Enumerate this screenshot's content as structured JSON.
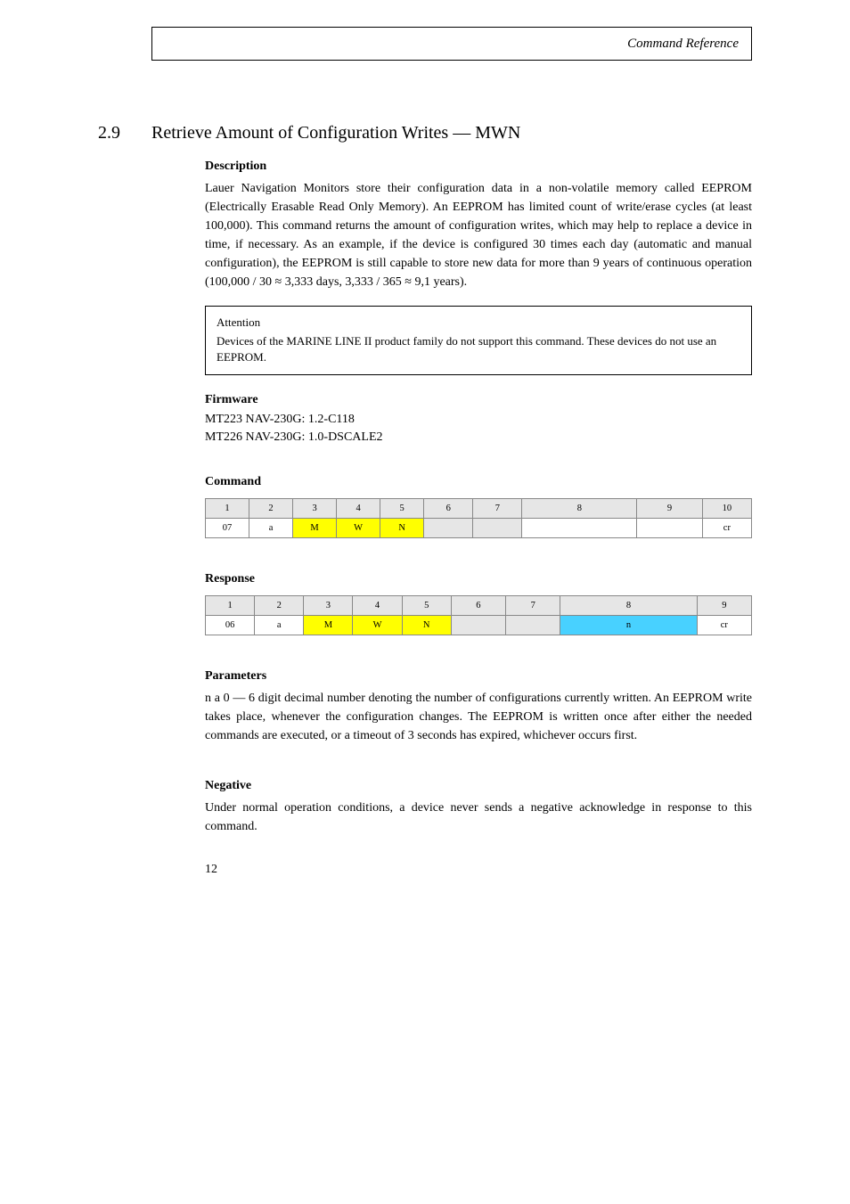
{
  "header": {
    "title": "Command Reference"
  },
  "section_2_9": {
    "number": "2.9",
    "title": "Retrieve Amount of Configuration Writes — MWN",
    "description_label": "Description",
    "description": "Lauer Navigation Monitors store their configuration data in a non-volatile memory called EEPROM (Electrically Erasable Read Only Memory). An EEPROM has limited count of write/erase cycles (at least 100,000). This command returns the amount of configuration writes, which may help to replace a device in time, if necessary. As an example, if the device is configured 30 times each day (automatic and manual configuration), the EEPROM is still capable to store new data for more than 9 years of continuous operation (100,000 / 30 ≈ 3,333 days, 3,333 / 365 ≈ 9,1 years).",
    "attention_label": "Attention",
    "attention_text": "Devices of the MARINE LINE II product family do not support this command. These devices do not use an EEPROM.",
    "fw_label": "Firmware",
    "fw_line1": "MT223 NAV-230G: 1.2-C118",
    "fw_line2": "MT226 NAV-230G: 1.0-DSCALE2",
    "cmd_label": "Command",
    "resp_label": "Response",
    "params_label": "Parameters",
    "params_text": "n  a 0 — 6 digit decimal number denoting the number of configurations currently written. An EEPROM write takes place, whenever the configuration changes. The EEPROM is written once after either the needed commands are executed, or a timeout of 3 seconds has expired, whichever occurs first.",
    "neg_label": "Negative",
    "neg_text": "Under normal operation conditions, a device never sends a negative acknowledge in response to this command."
  },
  "command_table": {
    "headers": [
      "1",
      "2",
      "3",
      "4",
      "5",
      "6",
      "7",
      "8",
      "9",
      "10"
    ],
    "row": [
      "07",
      "a",
      "M",
      "W",
      "N",
      "",
      "",
      "",
      "",
      "cr"
    ],
    "cell_bg": [
      "",
      "",
      "ylw",
      "ylw",
      "ylw",
      "gray",
      "gray",
      "",
      "",
      ""
    ],
    "col_widths": [
      "8%",
      "8%",
      "8%",
      "8%",
      "8%",
      "9%",
      "9%",
      "21%",
      "12%",
      "9%"
    ]
  },
  "response_table": {
    "headers": [
      "1",
      "2",
      "3",
      "4",
      "5",
      "6",
      "7",
      "8",
      "9"
    ],
    "row": [
      "06",
      "a",
      "M",
      "W",
      "N",
      "",
      "",
      "n",
      "cr"
    ],
    "cell_bg": [
      "",
      "",
      "ylw",
      "ylw",
      "ylw",
      "gray",
      "gray",
      "cyan",
      ""
    ],
    "col_widths": [
      "9%",
      "9%",
      "9%",
      "9%",
      "9%",
      "10%",
      "10%",
      "25%",
      "10%"
    ]
  },
  "page_number": "12"
}
